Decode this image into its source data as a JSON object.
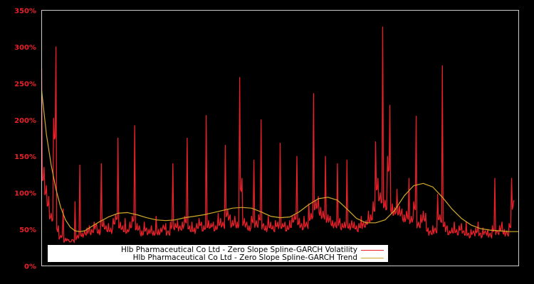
{
  "chart_data": {
    "type": "line",
    "title": "",
    "xlabel": "",
    "ylabel": "",
    "ylim": [
      0,
      350
    ],
    "yticks": [
      "0%",
      "50%",
      "100%",
      "150%",
      "200%",
      "250%",
      "300%",
      "350%"
    ],
    "ytick_values": [
      0,
      50,
      100,
      150,
      200,
      250,
      300,
      350
    ],
    "grid": false,
    "legend_position": "bottom-left inside",
    "colors": {
      "background": "#000000",
      "frame": "#cccccc",
      "tick_text": "#e8202a",
      "volatility": "#e8202a",
      "trend": "#d4a82a"
    },
    "series": [
      {
        "name": "Hlb Pharmaceutical Co Ltd - Zero Slope Spline-GARCH Volatility",
        "color": "#e8202a",
        "x_fraction": [
          0.0,
          0.005,
          0.01,
          0.015,
          0.02,
          0.025,
          0.03,
          0.035,
          0.04,
          0.045,
          0.05,
          0.055,
          0.06,
          0.065,
          0.07,
          0.075,
          0.08,
          0.085,
          0.09,
          0.095,
          0.1,
          0.105,
          0.11,
          0.115,
          0.12,
          0.125,
          0.13,
          0.135,
          0.14,
          0.145,
          0.15,
          0.155,
          0.16,
          0.165,
          0.17,
          0.175,
          0.18,
          0.185,
          0.19,
          0.195,
          0.2,
          0.205,
          0.21,
          0.215,
          0.22,
          0.225,
          0.23,
          0.235,
          0.24,
          0.245,
          0.25,
          0.255,
          0.26,
          0.265,
          0.27,
          0.275,
          0.28,
          0.285,
          0.29,
          0.295,
          0.3,
          0.305,
          0.31,
          0.315,
          0.32,
          0.325,
          0.33,
          0.335,
          0.34,
          0.345,
          0.35,
          0.355,
          0.36,
          0.365,
          0.37,
          0.375,
          0.38,
          0.385,
          0.39,
          0.395,
          0.4,
          0.405,
          0.41,
          0.415,
          0.42,
          0.425,
          0.43,
          0.435,
          0.44,
          0.445,
          0.45,
          0.455,
          0.46,
          0.465,
          0.47,
          0.475,
          0.48,
          0.485,
          0.49,
          0.495,
          0.5,
          0.505,
          0.51,
          0.515,
          0.52,
          0.525,
          0.53,
          0.535,
          0.54,
          0.545,
          0.55,
          0.555,
          0.56,
          0.565,
          0.57,
          0.575,
          0.58,
          0.585,
          0.59,
          0.595,
          0.6,
          0.605,
          0.61,
          0.615,
          0.62,
          0.625,
          0.63,
          0.635,
          0.64,
          0.645,
          0.65,
          0.655,
          0.66,
          0.665,
          0.67,
          0.675,
          0.68,
          0.685,
          0.69,
          0.695,
          0.7,
          0.705,
          0.71,
          0.715,
          0.72,
          0.725,
          0.73,
          0.735,
          0.74,
          0.745,
          0.75,
          0.755,
          0.76,
          0.765,
          0.77,
          0.775,
          0.78,
          0.785,
          0.79,
          0.795,
          0.8,
          0.805,
          0.81,
          0.815,
          0.82,
          0.825,
          0.83,
          0.835,
          0.84,
          0.845,
          0.85,
          0.855,
          0.86,
          0.865,
          0.87,
          0.875,
          0.88,
          0.885,
          0.89,
          0.895,
          0.9,
          0.905,
          0.91,
          0.915,
          0.92,
          0.925,
          0.93,
          0.935,
          0.94,
          0.945,
          0.95,
          0.955,
          0.96,
          0.965,
          0.97,
          0.975,
          0.98,
          0.985,
          0.99,
          0.995,
          1.0
        ],
        "values": [
          270,
          135,
          110,
          95,
          72,
          202,
          300,
          55,
          42,
          78,
          38,
          35,
          33,
          36,
          88,
          42,
          138,
          45,
          48,
          52,
          55,
          50,
          60,
          58,
          50,
          140,
          62,
          55,
          58,
          52,
          65,
          70,
          175,
          60,
          55,
          65,
          50,
          60,
          68,
          192,
          58,
          55,
          48,
          60,
          52,
          50,
          55,
          48,
          68,
          50,
          52,
          56,
          58,
          48,
          60,
          140,
          58,
          62,
          55,
          60,
          68,
          175,
          55,
          60,
          52,
          58,
          65,
          60,
          55,
          206,
          62,
          58,
          60,
          55,
          72,
          65,
          60,
          165,
          78,
          70,
          62,
          68,
          60,
          258,
          120,
          65,
          60,
          55,
          68,
          145,
          62,
          70,
          200,
          58,
          55,
          68,
          60,
          55,
          62,
          60,
          168,
          58,
          60,
          55,
          62,
          68,
          70,
          150,
          65,
          58,
          68,
          60,
          85,
          72,
          236,
          90,
          95,
          80,
          75,
          150,
          70,
          68,
          62,
          60,
          140,
          65,
          58,
          60,
          145,
          58,
          62,
          60,
          55,
          58,
          68,
          60,
          62,
          75,
          70,
          88,
          170,
          120,
          100,
          327,
          90,
          150,
          220,
          85,
          80,
          105,
          82,
          78,
          70,
          75,
          120,
          68,
          88,
          205,
          60,
          70,
          75,
          72,
          52,
          48,
          55,
          52,
          98,
          70,
          274,
          60,
          55,
          48,
          52,
          60,
          50,
          55,
          58,
          48,
          60,
          45,
          50,
          48,
          52,
          60,
          45,
          52,
          48,
          50,
          45,
          55,
          120,
          48,
          55,
          60,
          50,
          48,
          58,
          120,
          90
        ]
      },
      {
        "name": "Hlb Pharmaceutical Co Ltd - Zero Slope Spline-GARCH Trend",
        "color": "#d4a82a",
        "x_fraction": [
          0.0,
          0.01,
          0.02,
          0.03,
          0.04,
          0.05,
          0.06,
          0.07,
          0.08,
          0.09,
          0.1,
          0.12,
          0.14,
          0.16,
          0.18,
          0.2,
          0.22,
          0.24,
          0.26,
          0.28,
          0.3,
          0.32,
          0.34,
          0.36,
          0.38,
          0.4,
          0.42,
          0.44,
          0.46,
          0.48,
          0.5,
          0.52,
          0.54,
          0.56,
          0.58,
          0.6,
          0.62,
          0.64,
          0.66,
          0.68,
          0.7,
          0.72,
          0.74,
          0.76,
          0.78,
          0.8,
          0.82,
          0.84,
          0.86,
          0.88,
          0.9,
          0.92,
          0.94,
          0.96,
          0.98,
          1.0
        ],
        "values": [
          240,
          180,
          138,
          105,
          80,
          63,
          53,
          48,
          47,
          48,
          52,
          60,
          67,
          72,
          73,
          70,
          66,
          63,
          62,
          63,
          66,
          68,
          70,
          73,
          76,
          79,
          80,
          79,
          74,
          68,
          66,
          67,
          74,
          84,
          92,
          94,
          90,
          78,
          65,
          59,
          59,
          63,
          76,
          96,
          110,
          113,
          108,
          94,
          78,
          65,
          56,
          51,
          49,
          48,
          47,
          47
        ]
      }
    ]
  },
  "legend": {
    "items": [
      {
        "label": "Hlb Pharmaceutical Co Ltd - Zero Slope Spline-GARCH Volatility",
        "color": "#e8202a"
      },
      {
        "label": "Hlb Pharmaceutical Co Ltd - Zero Slope Spline-GARCH Trend",
        "color": "#d4a82a"
      }
    ]
  }
}
